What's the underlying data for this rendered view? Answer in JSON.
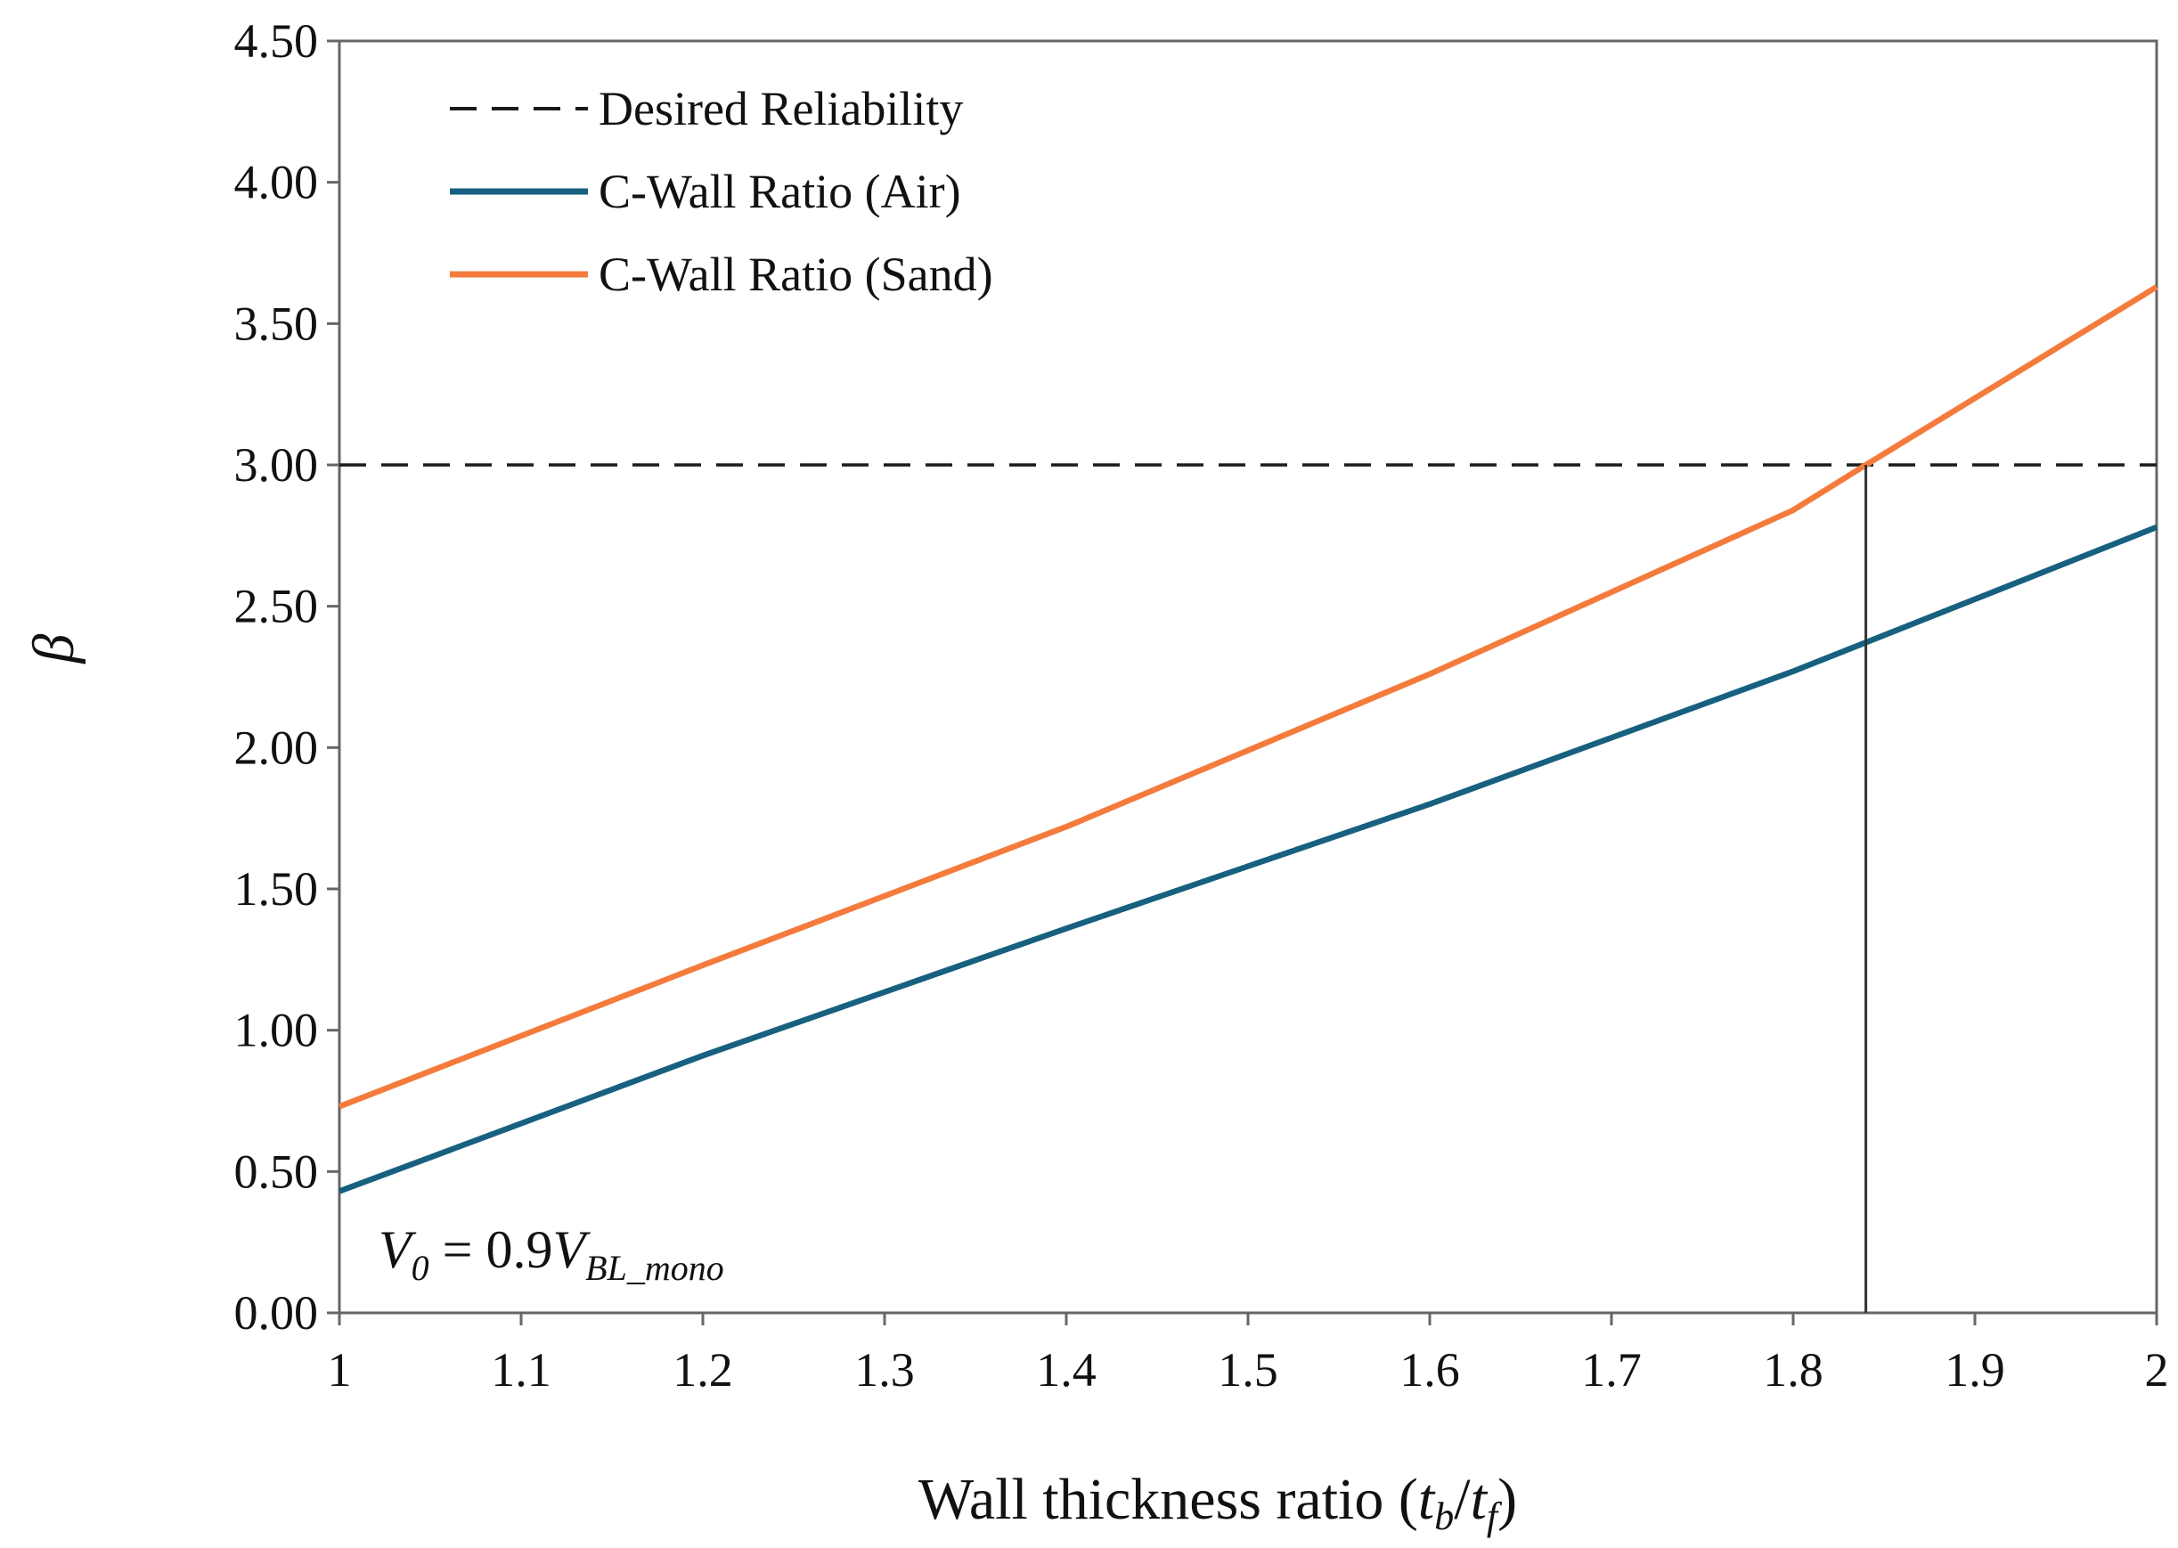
{
  "chart_data": {
    "type": "line",
    "title": "",
    "xlabel": "Wall thickness ratio",
    "xlabel_paren_open": "(",
    "xlabel_t1": "t",
    "xlabel_sub1": "b",
    "xlabel_slash": "/",
    "xlabel_t2": "t",
    "xlabel_sub2": "f",
    "xlabel_paren_close": ")",
    "ylabel": "β",
    "xlim": [
      1,
      2
    ],
    "ylim": [
      0,
      4.5
    ],
    "x_ticks": [
      "1",
      "1.1",
      "1.2",
      "1.3",
      "1.4",
      "1.5",
      "1.6",
      "1.7",
      "1.8",
      "1.9",
      "2"
    ],
    "y_ticks": [
      "0.00",
      "0.50",
      "1.00",
      "1.50",
      "2.00",
      "2.50",
      "3.00",
      "3.50",
      "4.00",
      "4.50"
    ],
    "grid": false,
    "legend_position": "top-left",
    "series": [
      {
        "name": "Desired Reliability",
        "style": "dashed",
        "color": "#1a1a1a",
        "x": [
          1,
          2
        ],
        "y": [
          3.0,
          3.0
        ]
      },
      {
        "name": "C-Wall Ratio (Air)",
        "style": "solid",
        "color": "#17607f",
        "x": [
          1.0,
          1.2,
          1.4,
          1.6,
          1.8,
          2.0
        ],
        "y": [
          0.43,
          0.91,
          1.36,
          1.8,
          2.27,
          2.78
        ]
      },
      {
        "name": "C-Wall Ratio (Sand)",
        "style": "solid",
        "color": "#f47b3c",
        "x": [
          1.0,
          1.2,
          1.4,
          1.6,
          1.8,
          1.84,
          2.0
        ],
        "y": [
          0.73,
          1.23,
          1.72,
          2.26,
          2.84,
          3.0,
          3.63
        ]
      }
    ],
    "reference_line": {
      "orientation": "vertical",
      "x": 1.84,
      "y_from": 0,
      "y_to": 3.0,
      "color": "#333333"
    },
    "annotation": {
      "v": "V",
      "v_sub": "0",
      "equals": " = 0.9",
      "v2": "V",
      "v2_sub": "BL_mono"
    }
  }
}
